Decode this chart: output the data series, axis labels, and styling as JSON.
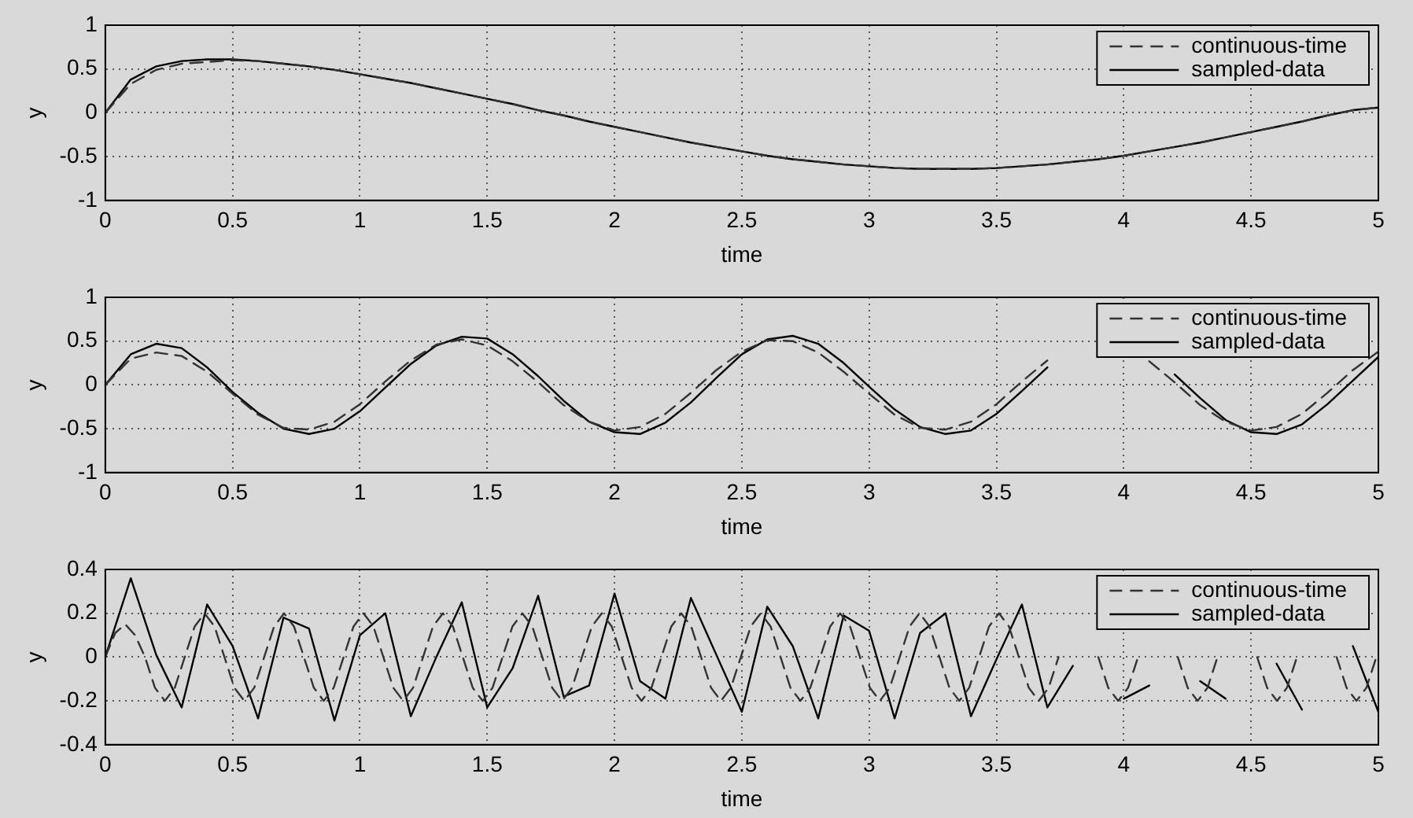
{
  "chart_data": [
    {
      "type": "line",
      "xlabel": "time",
      "ylabel": "y",
      "x": [
        0,
        0.1,
        0.2,
        0.3,
        0.4,
        0.5,
        0.6,
        0.7,
        0.8,
        0.9,
        1,
        1.1,
        1.2,
        1.3,
        1.4,
        1.5,
        1.6,
        1.7,
        1.8,
        1.9,
        2,
        2.1,
        2.2,
        2.3,
        2.4,
        2.5,
        2.6,
        2.7,
        2.8,
        2.9,
        3,
        3.1,
        3.2,
        3.3,
        3.4,
        3.5,
        3.6,
        3.7,
        3.8,
        3.9,
        4,
        4.1,
        4.2,
        4.3,
        4.4,
        4.5,
        4.6,
        4.7,
        4.8,
        4.9,
        5
      ],
      "xlim": [
        0,
        5
      ],
      "xticks": [
        0,
        0.5,
        1,
        1.5,
        2,
        2.5,
        3,
        3.5,
        4,
        4.5,
        5
      ],
      "ylim": [
        -1,
        1
      ],
      "yticks": [
        -1,
        -0.5,
        0,
        0.5,
        1
      ],
      "grid": true,
      "legend": "top right",
      "marker": "none",
      "series": [
        {
          "name": "continuous-time",
          "color": "#333333",
          "line_style": "dashed",
          "values": [
            0,
            0.33,
            0.49,
            0.56,
            0.58,
            0.6,
            0.59,
            0.56,
            0.53,
            0.49,
            0.44,
            0.39,
            0.34,
            0.28,
            0.22,
            0.16,
            0.1,
            0.03,
            -0.03,
            -0.1,
            -0.16,
            -0.22,
            -0.28,
            -0.34,
            -0.39,
            -0.44,
            -0.49,
            -0.53,
            -0.56,
            -0.59,
            -0.61,
            -0.63,
            -0.64,
            -0.64,
            -0.64,
            -0.63,
            -0.61,
            -0.59,
            -0.56,
            -0.53,
            -0.49,
            -0.44,
            -0.39,
            -0.34,
            -0.28,
            -0.22,
            -0.16,
            -0.1,
            -0.03,
            0.03,
            0.06
          ]
        },
        {
          "name": "sampled-data",
          "color": "#000000",
          "line_style": "solid",
          "values": [
            0,
            0.38,
            0.53,
            0.59,
            0.61,
            0.61,
            0.59,
            0.56,
            0.53,
            0.49,
            0.44,
            0.39,
            0.34,
            0.28,
            0.22,
            0.16,
            0.1,
            0.03,
            -0.03,
            -0.1,
            -0.16,
            -0.22,
            -0.28,
            -0.34,
            -0.39,
            -0.44,
            -0.49,
            -0.53,
            -0.56,
            -0.59,
            -0.61,
            -0.63,
            -0.64,
            -0.64,
            -0.64,
            -0.63,
            -0.61,
            -0.59,
            -0.56,
            -0.53,
            -0.49,
            -0.44,
            -0.39,
            -0.34,
            -0.28,
            -0.22,
            -0.16,
            -0.1,
            -0.03,
            0.03,
            0.06
          ]
        }
      ]
    },
    {
      "type": "line",
      "xlabel": "time",
      "ylabel": "y",
      "x": [
        0,
        0.1,
        0.2,
        0.3,
        0.4,
        0.5,
        0.6,
        0.7,
        0.8,
        0.9,
        1,
        1.1,
        1.2,
        1.3,
        1.4,
        1.5,
        1.6,
        1.7,
        1.8,
        1.9,
        2,
        2.1,
        2.2,
        2.3,
        2.4,
        2.5,
        2.6,
        2.7,
        2.8,
        2.9,
        3,
        3.1,
        3.2,
        3.3,
        3.4,
        3.5,
        3.6,
        3.7,
        3.8,
        3.9,
        4,
        4.1,
        4.2,
        4.3,
        4.4,
        4.5,
        4.6,
        4.7,
        4.8,
        4.9,
        5
      ],
      "xlim": [
        0,
        5
      ],
      "xticks": [
        0,
        0.5,
        1,
        1.5,
        2,
        2.5,
        3,
        3.5,
        4,
        4.5,
        5
      ],
      "ylim": [
        -1,
        1
      ],
      "yticks": [
        -1,
        -0.5,
        0,
        0.5,
        1
      ],
      "grid": true,
      "legend": "top right",
      "marker": "none",
      "series": [
        {
          "name": "continuous-time",
          "color": "#333333",
          "line_style": "dashed",
          "values": [
            0,
            0.3,
            0.37,
            0.33,
            0.15,
            -0.1,
            -0.34,
            -0.49,
            -0.51,
            -0.42,
            -0.22,
            0.04,
            0.28,
            0.46,
            0.52,
            0.45,
            0.27,
            0.03,
            -0.23,
            -0.42,
            -0.52,
            -0.48,
            -0.33,
            -0.09,
            0.17,
            0.38,
            0.51,
            0.5,
            0.37,
            0.15,
            -0.1,
            -0.34,
            -0.49,
            -0.51,
            -0.42,
            -0.22,
            0.04,
            0.28,
            null,
            null,
            null,
            0.27,
            0.03,
            -0.23,
            -0.42,
            -0.52,
            -0.48,
            -0.33,
            -0.09,
            0.17,
            0.38
          ]
        },
        {
          "name": "sampled-data",
          "color": "#000000",
          "line_style": "solid",
          "values": [
            0,
            0.35,
            0.47,
            0.42,
            0.2,
            -0.08,
            -0.32,
            -0.5,
            -0.56,
            -0.5,
            -0.3,
            -0.03,
            0.24,
            0.45,
            0.55,
            0.53,
            0.35,
            0.1,
            -0.18,
            -0.42,
            -0.54,
            -0.56,
            -0.43,
            -0.2,
            0.08,
            0.35,
            0.52,
            0.56,
            0.47,
            0.25,
            -0.02,
            -0.28,
            -0.48,
            -0.56,
            -0.52,
            -0.33,
            -0.07,
            0.2,
            null,
            null,
            null,
            null,
            0.12,
            -0.15,
            -0.4,
            -0.54,
            -0.56,
            -0.45,
            -0.22,
            0.05,
            0.32
          ]
        }
      ]
    },
    {
      "type": "line",
      "xlabel": "time",
      "ylabel": "y",
      "x": [
        0,
        0.1,
        0.2,
        0.3,
        0.4,
        0.5,
        0.6,
        0.7,
        0.8,
        0.9,
        1,
        1.1,
        1.2,
        1.3,
        1.4,
        1.5,
        1.6,
        1.7,
        1.8,
        1.9,
        2,
        2.1,
        2.2,
        2.3,
        2.4,
        2.5,
        2.6,
        2.7,
        2.8,
        2.9,
        3,
        3.1,
        3.2,
        3.3,
        3.4,
        3.5,
        3.6,
        3.7,
        3.8,
        3.9,
        4,
        4.1,
        4.2,
        4.3,
        4.4,
        4.5,
        4.6,
        4.7,
        4.8,
        4.9,
        5
      ],
      "xlim": [
        0,
        5
      ],
      "xticks": [
        0,
        0.5,
        1,
        1.5,
        2,
        2.5,
        3,
        3.5,
        4,
        4.5,
        5
      ],
      "ylim": [
        -0.4,
        0.4
      ],
      "yticks": [
        -0.4,
        -0.2,
        0,
        0.2,
        0.4
      ],
      "grid": true,
      "legend": "top right",
      "marker": "none",
      "series": [
        {
          "name": "continuous-time",
          "color": "#333333",
          "line_style": "dashed",
          "x": [
            0,
            0.039,
            0.078,
            0.117,
            0.156,
            0.195,
            0.234,
            0.273,
            0.312,
            0.351,
            0.39,
            0.429,
            0.468,
            0.507,
            0.546,
            0.585,
            0.624,
            0.663,
            0.702,
            0.741,
            0.78,
            0.819,
            0.858,
            0.897,
            0.936,
            0.975,
            1.014,
            1.053,
            1.092,
            1.131,
            1.17,
            1.209,
            1.248,
            1.287,
            1.326,
            1.365,
            1.404,
            1.443,
            1.482,
            1.521,
            1.56,
            1.599,
            1.638,
            1.677,
            1.716,
            1.755,
            1.794,
            1.833,
            1.872,
            1.911,
            1.95,
            1.989,
            2.028,
            2.067,
            2.106,
            2.145,
            2.184,
            2.223,
            2.262,
            2.301,
            2.34,
            2.379,
            2.418,
            2.457,
            2.496,
            2.535,
            2.574,
            2.613,
            2.652,
            2.691,
            2.73,
            2.769,
            2.808,
            2.847,
            2.886,
            2.925,
            2.964,
            3.003,
            3.042,
            3.081,
            3.12,
            3.159,
            3.198,
            3.237,
            3.276,
            3.315,
            3.354,
            3.393,
            3.432,
            3.471,
            3.51,
            3.549,
            3.588,
            3.627,
            3.666,
            3.705,
            3.744,
            3.783,
            3.822,
            3.861,
            3.9,
            3.939,
            3.978,
            4.017,
            4.056,
            4.095,
            4.134,
            4.173,
            4.212,
            4.251,
            4.29,
            4.329,
            4.368,
            4.407,
            4.446,
            4.485,
            4.524,
            4.563,
            4.602,
            4.641,
            4.68,
            4.719,
            4.758,
            4.797,
            4.836,
            4.875,
            4.914,
            4.953,
            4.992
          ],
          "values": [
            0,
            0.11,
            0.15,
            0.1,
            0,
            -0.14,
            -0.2,
            -0.14,
            0,
            0.14,
            0.2,
            0.14,
            0,
            -0.14,
            -0.2,
            -0.14,
            0,
            0.14,
            0.2,
            0.14,
            0,
            -0.14,
            -0.2,
            -0.14,
            0,
            0.14,
            0.2,
            0.14,
            0,
            -0.14,
            -0.2,
            -0.14,
            0,
            0.14,
            0.2,
            0.14,
            0,
            -0.14,
            -0.2,
            -0.14,
            0,
            0.14,
            0.2,
            0.14,
            0,
            -0.14,
            -0.2,
            -0.14,
            0,
            0.14,
            0.2,
            0.14,
            0,
            -0.14,
            -0.2,
            -0.14,
            0,
            0.14,
            0.2,
            0.14,
            0,
            -0.14,
            -0.2,
            -0.14,
            0,
            0.14,
            0.2,
            0.14,
            0,
            -0.14,
            -0.2,
            -0.14,
            0,
            0.14,
            0.2,
            0.14,
            0,
            -0.14,
            -0.2,
            -0.14,
            0,
            0.14,
            0.2,
            0.14,
            0,
            -0.14,
            -0.2,
            -0.14,
            0,
            0.14,
            0.2,
            0.14,
            0,
            -0.14,
            -0.2,
            -0.14,
            0,
            null,
            null,
            null,
            0,
            -0.14,
            -0.2,
            -0.14,
            0,
            null,
            null,
            null,
            0,
            -0.14,
            -0.2,
            -0.14,
            0,
            null,
            null,
            null,
            0,
            -0.14,
            -0.2,
            -0.14,
            0,
            null,
            null,
            null,
            0,
            -0.14,
            -0.2,
            -0.14,
            0
          ]
        },
        {
          "name": "sampled-data",
          "color": "#000000",
          "line_style": "solid",
          "values": [
            0,
            0.36,
            0.01,
            -0.23,
            0.24,
            0.05,
            -0.28,
            0.18,
            0.13,
            -0.29,
            0.1,
            0.2,
            -0.27,
            0,
            0.25,
            -0.23,
            -0.05,
            0.28,
            -0.18,
            -0.13,
            0.29,
            -0.11,
            -0.19,
            0.27,
            0.01,
            -0.25,
            0.23,
            0.05,
            -0.28,
            0.19,
            0.12,
            -0.28,
            0.11,
            0.2,
            -0.27,
            -0.01,
            0.24,
            -0.23,
            -0.04,
            null,
            -0.19,
            -0.13,
            null,
            -0.11,
            -0.19,
            null,
            -0.03,
            -0.24,
            null,
            0.05,
            -0.25
          ]
        }
      ]
    }
  ]
}
